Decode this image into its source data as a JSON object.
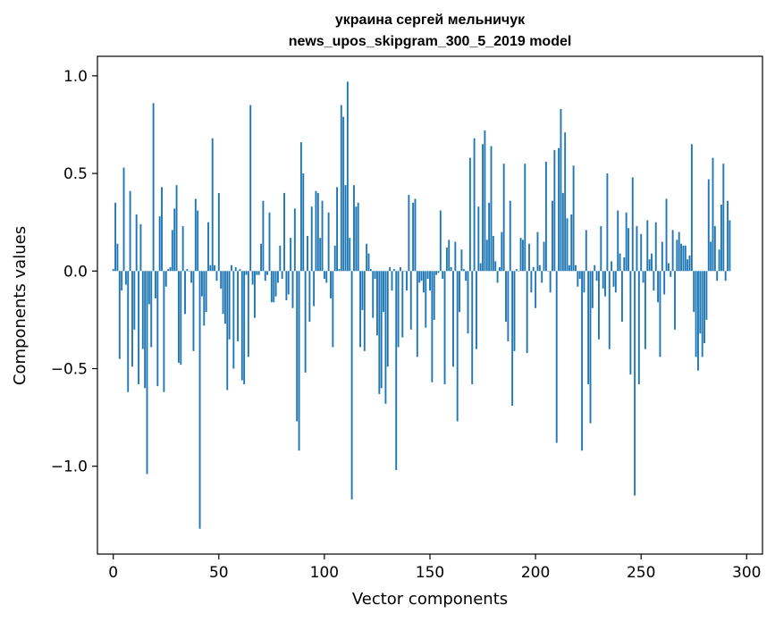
{
  "chart_data": {
    "type": "bar",
    "title": "украина сергей мельничук",
    "subtitle": "news_upos_skipgram_300_5_2019 model",
    "xlabel": "Vector components",
    "ylabel": "Components values",
    "xlim": [
      -7.5,
      307.5
    ],
    "ylim": [
      -1.45,
      1.1
    ],
    "x_ticks": [
      0,
      50,
      100,
      150,
      200,
      250,
      300
    ],
    "x_tick_labels": [
      "0",
      "50",
      "100",
      "150",
      "200",
      "250",
      "300"
    ],
    "y_ticks": [
      -1.0,
      -0.5,
      0.0,
      0.5,
      1.0
    ],
    "y_tick_labels": [
      "−1.0",
      "−0.5",
      "0.0",
      "0.5",
      "1.0"
    ],
    "bar_color": "#1f77b4",
    "values": [
      0.01,
      0.35,
      0.14,
      -0.45,
      -0.1,
      0.53,
      -0.07,
      -0.62,
      0.41,
      -0.49,
      -0.3,
      0.29,
      -0.58,
      0.24,
      -0.4,
      -0.6,
      -1.04,
      -0.17,
      -0.39,
      0.86,
      -0.14,
      -0.59,
      0.28,
      0.43,
      -0.62,
      -0.08,
      0.01,
      0.02,
      0.21,
      0.32,
      0.44,
      -0.47,
      -0.48,
      0.23,
      -0.22,
      0.01,
      0.0,
      -0.06,
      -0.41,
      0.37,
      0.31,
      -1.32,
      -0.13,
      -0.28,
      -0.21,
      0.25,
      0.03,
      0.68,
      0.03,
      -0.05,
      0.4,
      -0.09,
      -0.22,
      -0.27,
      -0.61,
      -0.35,
      0.03,
      -0.5,
      0.02,
      -0.36,
      0.01,
      -0.56,
      -0.58,
      -0.02,
      -0.44,
      0.85,
      -0.07,
      -0.24,
      -0.02,
      -0.02,
      0.14,
      0.36,
      -0.05,
      -0.02,
      0.3,
      -0.16,
      -0.16,
      -0.13,
      -0.06,
      0.13,
      -0.04,
      0.4,
      -0.15,
      -0.12,
      0.17,
      -0.19,
      0.32,
      -0.77,
      -0.92,
      0.66,
      0.5,
      -0.52,
      0.18,
      -0.26,
      0.33,
      -0.18,
      0.41,
      0.4,
      0.17,
      0.36,
      -0.04,
      -0.06,
      0.3,
      -0.14,
      -0.39,
      0.13,
      0.43,
      0.01,
      0.85,
      0.79,
      0.44,
      0.97,
      0.17,
      -1.17,
      0.44,
      0.33,
      0.35,
      -0.39,
      -0.2,
      -0.41,
      0.14,
      0.09,
      0.01,
      -0.24,
      -0.04,
      -0.33,
      -0.63,
      -0.6,
      -0.21,
      -0.68,
      -0.49,
      0.02,
      -0.1,
      0.01,
      -1.02,
      -0.39,
      0.02,
      -0.34,
      0.0,
      -0.1,
      0.39,
      -0.3,
      0.35,
      0.37,
      -0.44,
      -0.06,
      -0.05,
      -0.11,
      -0.29,
      -0.04,
      -0.1,
      -0.57,
      -0.25,
      -0.02,
      -0.01,
      0.31,
      -0.04,
      -0.58,
      0.12,
      0.16,
      0.02,
      -0.49,
      0.15,
      -0.77,
      -0.21,
      0.11,
      0.01,
      -0.05,
      -0.32,
      0.58,
      -0.58,
      0.68,
      -0.4,
      0.33,
      0.04,
      0.65,
      0.72,
      0.16,
      0.35,
      0.64,
      0.18,
      0.05,
      -0.06,
      0.02,
      0.2,
      0.55,
      -0.26,
      -0.36,
      0.36,
      -0.69,
      -0.41,
      0.01,
      0.0,
      0.17,
      0.16,
      0.55,
      -0.42,
      0.14,
      -0.11,
      0.02,
      -0.19,
      0.2,
      0.03,
      -0.06,
      0.15,
      0.56,
      0.0,
      -0.11,
      0.36,
      0.62,
      -0.88,
      0.63,
      0.83,
      0.4,
      0.71,
      0.27,
      0.03,
      0.29,
      0.54,
      0.03,
      -0.08,
      -0.04,
      -0.92,
      -0.11,
      0.21,
      -0.58,
      -0.78,
      -0.19,
      0.03,
      -0.05,
      -0.35,
      0.23,
      -0.09,
      -0.13,
      0.5,
      -0.4,
      0.05,
      -0.08,
      -0.11,
      0.31,
      0.09,
      -0.26,
      0.07,
      0.3,
      0.22,
      -0.53,
      0.48,
      -1.15,
      0.23,
      -0.58,
      0.19,
      -0.06,
      -0.4,
      0.26,
      0.06,
      0.09,
      -0.1,
      0.25,
      -0.16,
      -0.44,
      0.15,
      -0.12,
      0.37,
      0.04,
      -0.03,
      0.21,
      -0.3,
      0.16,
      0.2,
      0.14,
      0.13,
      0.13,
      0.06,
      0.08,
      0.65,
      -0.21,
      -0.44,
      -0.51,
      -0.32,
      -0.44,
      -0.37,
      -0.25,
      0.47,
      0.15,
      0.58,
      0.23,
      -0.05,
      0.11,
      0.34,
      0.55,
      -0.05,
      0.36,
      0.26
    ]
  }
}
